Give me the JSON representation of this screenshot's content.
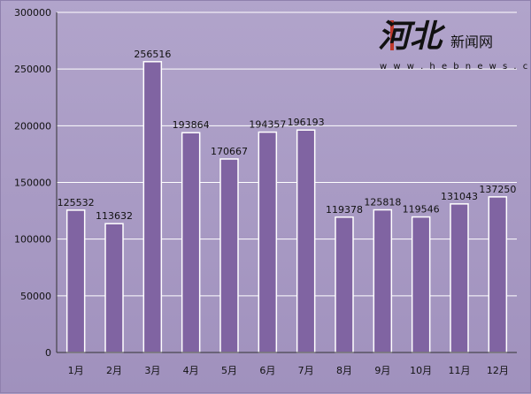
{
  "chart_data": {
    "type": "bar",
    "categories": [
      "1月",
      "2月",
      "3月",
      "4月",
      "5月",
      "6月",
      "7月",
      "8月",
      "9月",
      "10月",
      "11月",
      "12月"
    ],
    "values": [
      125532,
      113632,
      256516,
      193864,
      170667,
      194357,
      196193,
      119378,
      125818,
      119546,
      131043,
      137250
    ],
    "ylim": [
      0,
      300000
    ],
    "yticks": [
      0,
      50000,
      100000,
      150000,
      200000,
      250000,
      300000
    ],
    "grid": true,
    "colors": {
      "bar": "#8064a2",
      "bar_edge": "#ffffff",
      "grid": "#ffffff",
      "axis": "#333333"
    }
  },
  "watermark": {
    "logo_text": "河北",
    "site_text": "新闻网",
    "url_text": "w w w . h e b n e w s . c n"
  }
}
